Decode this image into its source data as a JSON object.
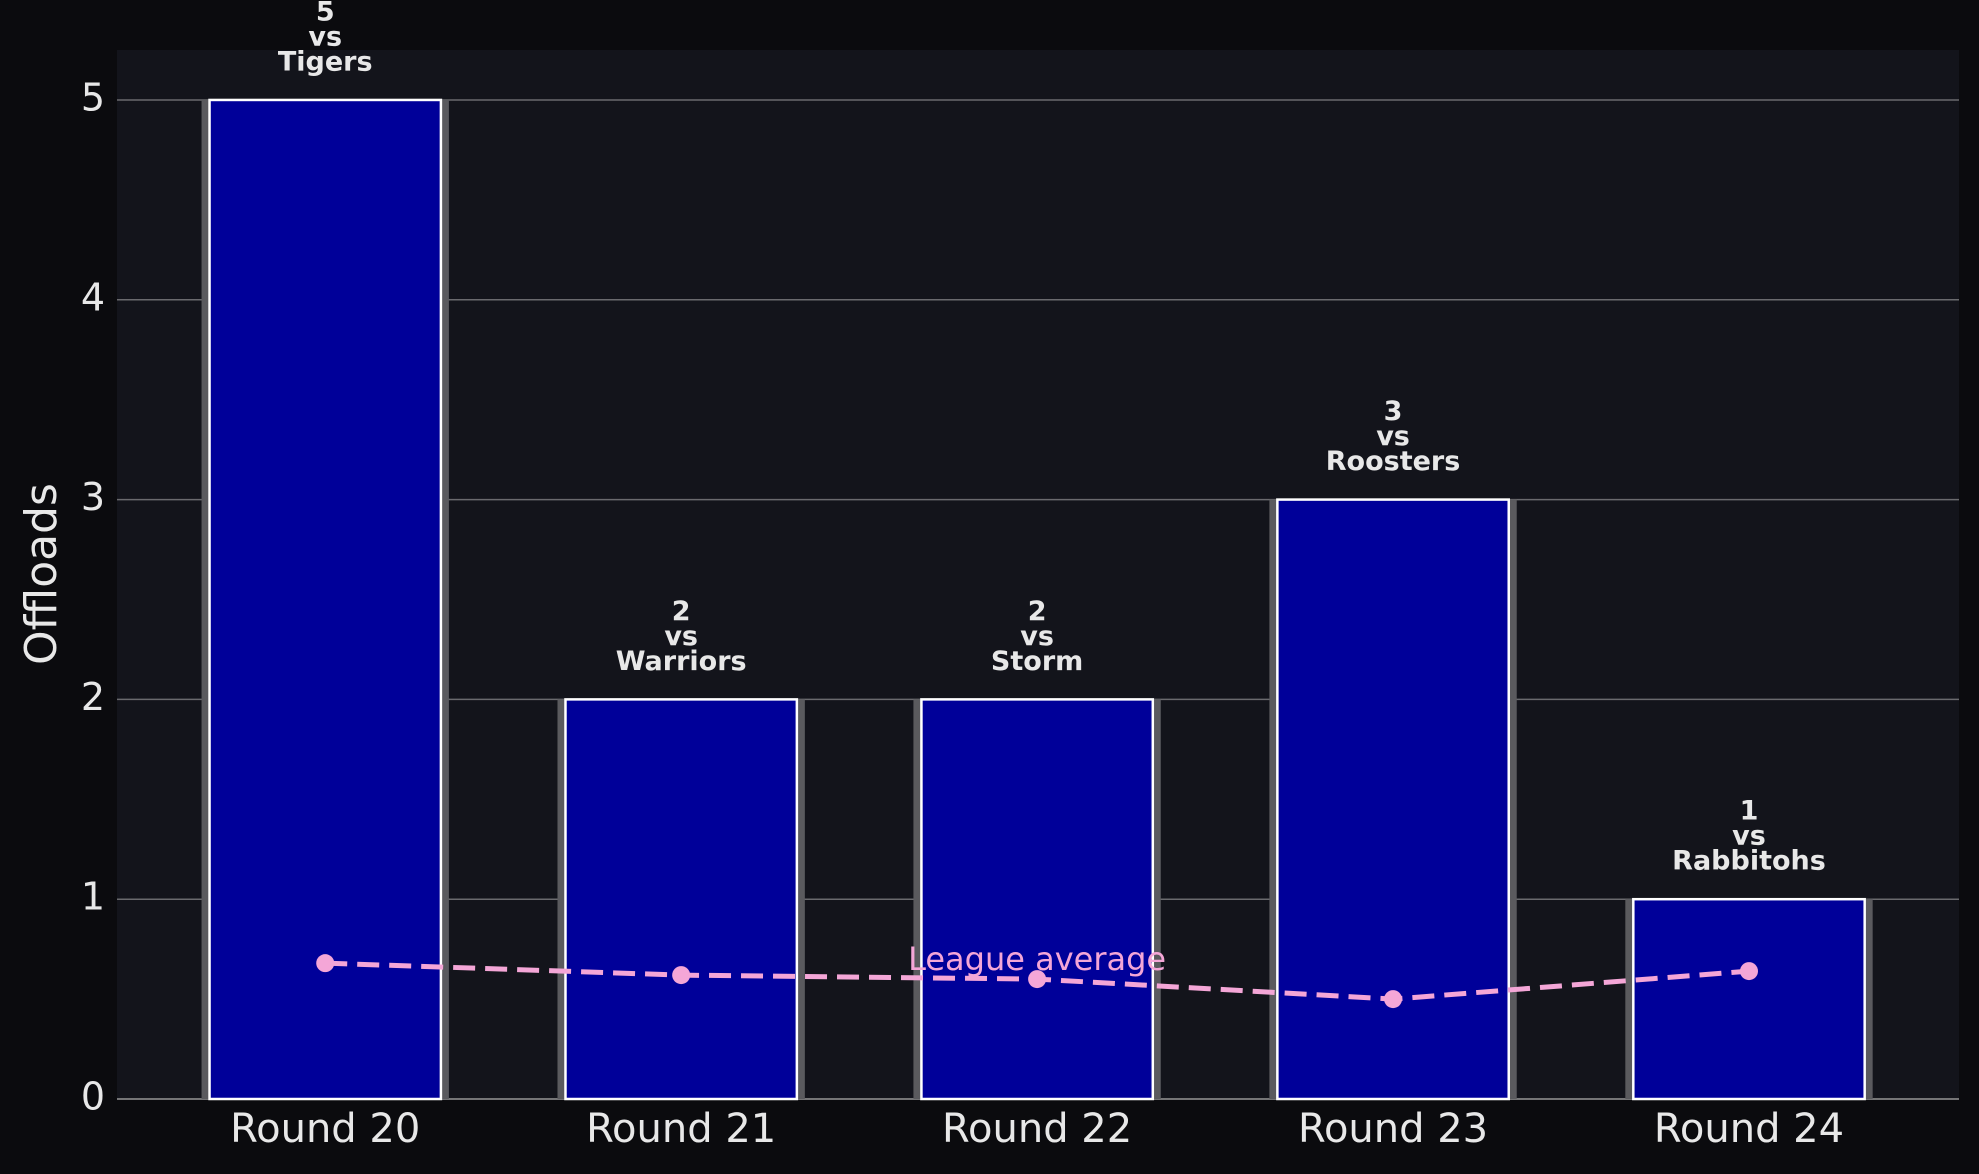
{
  "chart_data": {
    "type": "bar",
    "y_label": "Offloads",
    "categories": [
      "Round 20",
      "Round 21",
      "Round 22",
      "Round 23",
      "Round 24"
    ],
    "series": [
      {
        "name": "Offloads",
        "color": "#000099",
        "values": [
          5,
          2,
          2,
          3,
          1
        ]
      },
      {
        "name": "League average",
        "color": "#f4a6d7",
        "type": "line",
        "values": [
          0.68,
          0.62,
          0.6,
          0.5,
          0.64
        ]
      }
    ],
    "bar_labels": [
      [
        "vs",
        "Tigers"
      ],
      [
        "vs",
        "Warriors"
      ],
      [
        "vs",
        "Storm"
      ],
      [
        "vs",
        "Roosters"
      ],
      [
        "vs",
        "Rabbitohs"
      ]
    ],
    "ylim": [
      0,
      5.25
    ],
    "yticks": [
      0,
      1,
      2,
      3,
      4,
      5
    ],
    "grid": true
  }
}
